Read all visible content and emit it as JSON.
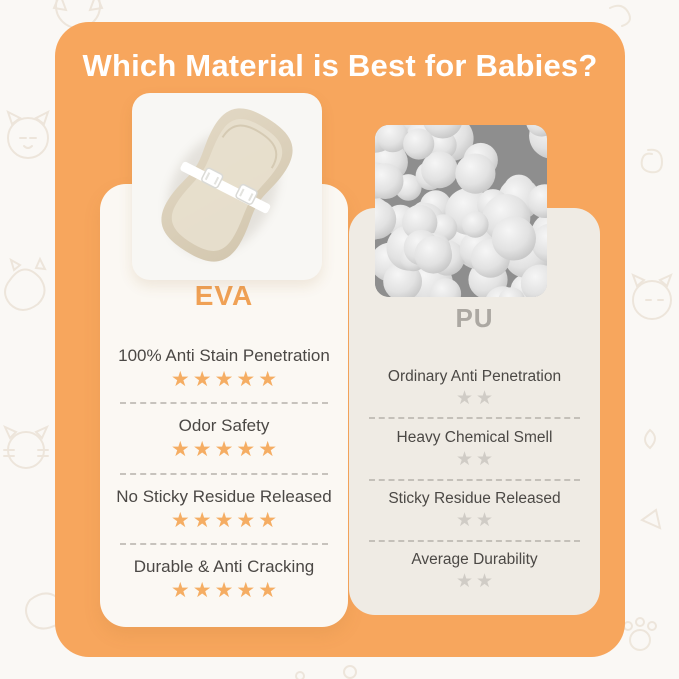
{
  "title": "Which Material is Best for Babies?",
  "colors": {
    "panel_orange": "#F7A65D",
    "page_background": "#FAF8F5",
    "left_card_bg": "#FBF8F3",
    "right_card_bg": "#EFEBE4",
    "eva_label_color": "#F0A155",
    "pu_label_color": "#ACA8A2",
    "star_orange": "#F5AD63",
    "star_gray": "#D0CCC6",
    "row_text_color": "#4B4845"
  },
  "left_card": {
    "label": "EVA",
    "image": "eva-changing-pad-photo",
    "max_stars": 5,
    "rows": [
      {
        "text": "100% Anti Stain Penetration",
        "stars": 5
      },
      {
        "text": "Odor Safety",
        "stars": 5
      },
      {
        "text": "No Sticky Residue Released",
        "stars": 5
      },
      {
        "text": "Durable & Anti Cracking",
        "stars": 5
      }
    ]
  },
  "right_card": {
    "label": "PU",
    "image": "pu-foam-balls-photo",
    "max_stars": 5,
    "rows": [
      {
        "text": "Ordinary Anti Penetration",
        "stars": 2
      },
      {
        "text": "Heavy Chemical Smell",
        "stars": 2
      },
      {
        "text": "Sticky Residue Released",
        "stars": 2
      },
      {
        "text": "Average Durability",
        "stars": 2
      }
    ]
  }
}
